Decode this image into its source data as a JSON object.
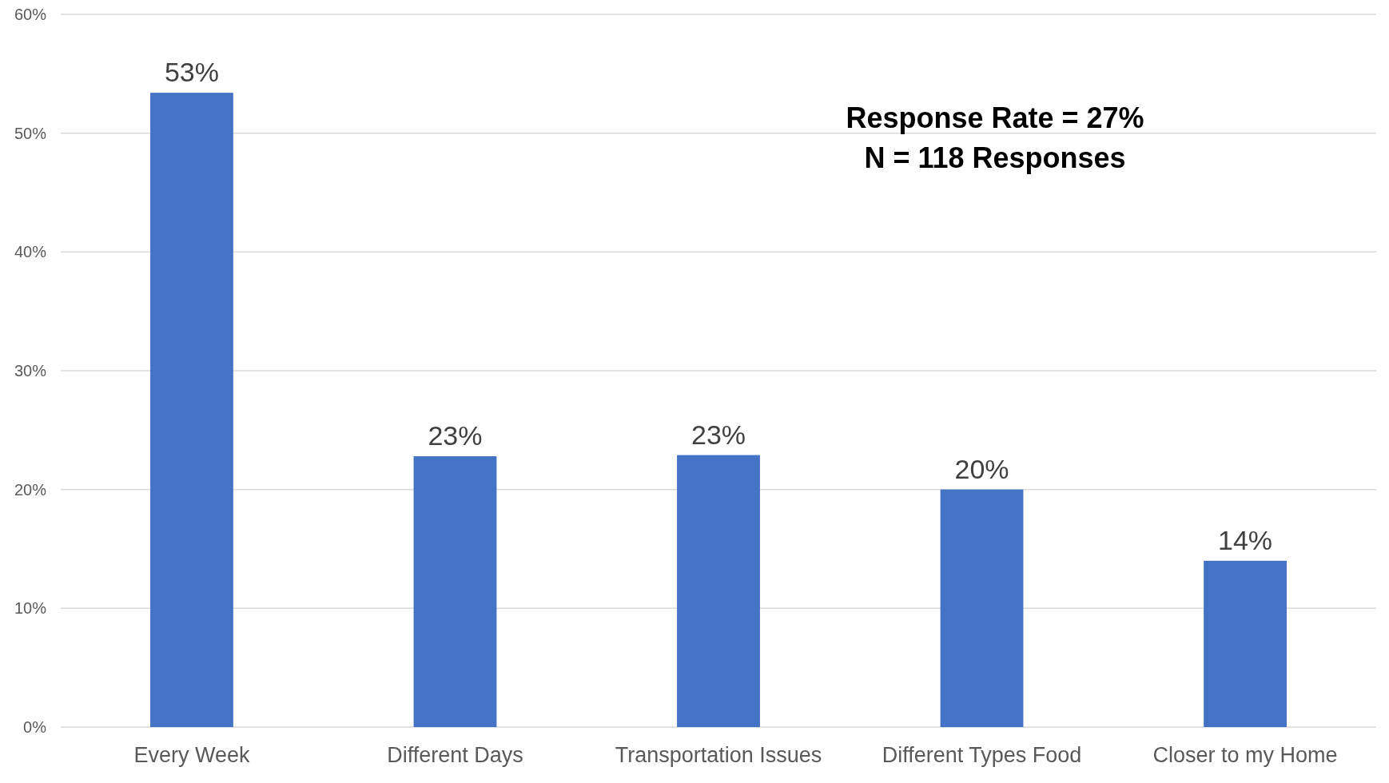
{
  "chart_data": {
    "type": "bar",
    "categories": [
      "Every Week",
      "Different Days",
      "Transportation Issues",
      "Different Types Food",
      "Closer to my Home"
    ],
    "values": [
      53.4,
      22.8,
      22.9,
      20,
      14
    ],
    "value_labels": [
      "53%",
      "23%",
      "23%",
      "20%",
      "14%"
    ],
    "color": "#4472c4",
    "ylim": [
      0,
      60
    ],
    "yticks": [
      {
        "value": 0,
        "label": "0%"
      },
      {
        "value": 10,
        "label": "10%"
      },
      {
        "value": 20,
        "label": "20%"
      },
      {
        "value": 30,
        "label": "30%"
      },
      {
        "value": 40,
        "label": "40%"
      },
      {
        "value": 50,
        "label": "50%"
      },
      {
        "value": 60,
        "label": "60%"
      }
    ],
    "grid": "y",
    "annotations": [
      "Response Rate = 27%",
      "N = 118 Responses"
    ]
  }
}
